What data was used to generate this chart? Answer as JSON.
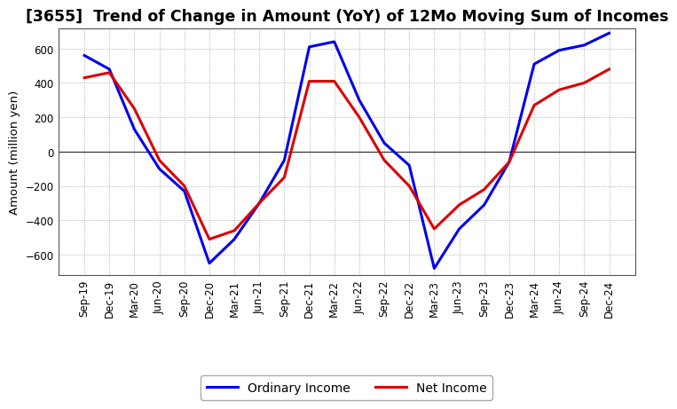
{
  "title": "[3655]  Trend of Change in Amount (YoY) of 12Mo Moving Sum of Incomes",
  "ylabel": "Amount (million yen)",
  "labels": [
    "Sep-19",
    "Dec-19",
    "Mar-20",
    "Jun-20",
    "Sep-20",
    "Dec-20",
    "Mar-21",
    "Jun-21",
    "Sep-21",
    "Dec-21",
    "Mar-22",
    "Jun-22",
    "Sep-22",
    "Dec-22",
    "Mar-23",
    "Jun-23",
    "Sep-23",
    "Dec-23",
    "Mar-24",
    "Jun-24",
    "Sep-24",
    "Dec-24"
  ],
  "ordinary_income": [
    560,
    480,
    130,
    -100,
    -230,
    -650,
    -510,
    -300,
    -50,
    610,
    640,
    300,
    50,
    -80,
    -680,
    -450,
    -310,
    -60,
    510,
    590,
    620,
    690
  ],
  "net_income": [
    430,
    460,
    250,
    -50,
    -200,
    -510,
    -460,
    -300,
    -150,
    410,
    410,
    200,
    -50,
    -200,
    -450,
    -310,
    -220,
    -60,
    270,
    360,
    400,
    480
  ],
  "ordinary_color": "#0000ee",
  "net_color": "#dd0000",
  "line_width": 2.2,
  "ylim": [
    -720,
    720
  ],
  "yticks": [
    -600,
    -400,
    -200,
    0,
    200,
    400,
    600
  ],
  "plot_bg": "#ffffff",
  "fig_bg": "#ffffff",
  "grid_color": "#aaaaaa",
  "title_fontsize": 12.5,
  "ylabel_fontsize": 9.5,
  "tick_fontsize": 8.5,
  "legend_fontsize": 10
}
